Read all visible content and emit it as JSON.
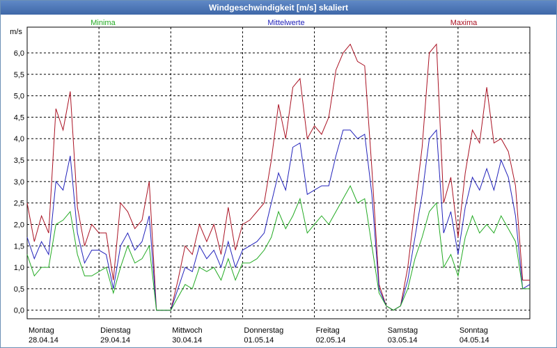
{
  "window": {
    "title": "Windgeschwindigkeit [m/s] skaliert"
  },
  "chart_data": {
    "type": "line",
    "title": "Windgeschwindigkeit [m/s] skaliert",
    "ylabel": "m/s",
    "ylim": [
      -0.2,
      6.6
    ],
    "yticks": [
      "0,0",
      "0,5",
      "1,0",
      "1,5",
      "2,0",
      "2,5",
      "3,0",
      "3,5",
      "4,0",
      "4,5",
      "5,0",
      "5,5",
      "6,0"
    ],
    "yticks_values": [
      0,
      0.5,
      1,
      1.5,
      2,
      2.5,
      3,
      3.5,
      4,
      4.5,
      5,
      5.5,
      6
    ],
    "xlim": [
      0,
      7
    ],
    "days": [
      {
        "day": "Montag",
        "date": "28.04.14"
      },
      {
        "day": "Dienstag",
        "date": "29.04.14"
      },
      {
        "day": "Mittwoch",
        "date": "30.04.14"
      },
      {
        "day": "Donnerstag",
        "date": "01.05.14"
      },
      {
        "day": "Freitag",
        "date": "02.05.14"
      },
      {
        "day": "Samstag",
        "date": "03.05.14"
      },
      {
        "day": "Sonntag",
        "date": "04.05.14"
      }
    ],
    "grid": true,
    "x": [
      0,
      0.1,
      0.2,
      0.3,
      0.4,
      0.5,
      0.6,
      0.7,
      0.8,
      0.9,
      1.0,
      1.1,
      1.2,
      1.3,
      1.4,
      1.5,
      1.6,
      1.7,
      1.8,
      1.9,
      2.0,
      2.1,
      2.2,
      2.3,
      2.4,
      2.5,
      2.6,
      2.7,
      2.8,
      2.9,
      3.0,
      3.1,
      3.2,
      3.3,
      3.4,
      3.5,
      3.6,
      3.7,
      3.8,
      3.9,
      4.0,
      4.1,
      4.2,
      4.3,
      4.4,
      4.5,
      4.6,
      4.7,
      4.8,
      4.9,
      5.0,
      5.1,
      5.2,
      5.3,
      5.4,
      5.5,
      5.6,
      5.7,
      5.8,
      5.9,
      6.0,
      6.1,
      6.2,
      6.3,
      6.4,
      6.5,
      6.6,
      6.7,
      6.8,
      6.9,
      7.0
    ],
    "series": [
      {
        "name": "Minima",
        "color": "#22aa22",
        "values": [
          1.3,
          0.8,
          1.0,
          1.0,
          2.0,
          2.1,
          2.3,
          1.3,
          0.8,
          0.8,
          0.9,
          1.0,
          0.4,
          1.0,
          1.5,
          1.1,
          1.2,
          1.5,
          0.0,
          0.0,
          0.0,
          0.3,
          0.6,
          0.5,
          1.0,
          0.9,
          1.0,
          0.7,
          1.2,
          0.7,
          1.1,
          1.1,
          1.2,
          1.4,
          1.7,
          2.3,
          1.9,
          2.2,
          2.6,
          1.8,
          2.0,
          2.2,
          2.0,
          2.3,
          2.6,
          2.9,
          2.5,
          2.6,
          1.5,
          0.4,
          0.1,
          0.0,
          0.1,
          0.5,
          1.2,
          1.7,
          2.3,
          2.5,
          1.0,
          1.3,
          0.8,
          1.7,
          2.2,
          1.8,
          2.0,
          1.8,
          2.2,
          1.9,
          1.6,
          0.5,
          0.5
        ]
      },
      {
        "name": "Mittelwerte",
        "color": "#2222bb",
        "values": [
          1.7,
          1.2,
          1.6,
          1.3,
          3.0,
          2.8,
          3.6,
          1.8,
          1.1,
          1.4,
          1.4,
          1.3,
          0.5,
          1.5,
          1.8,
          1.4,
          1.6,
          2.2,
          0.0,
          0.0,
          0.0,
          0.5,
          1.0,
          0.9,
          1.5,
          1.2,
          1.4,
          1.0,
          1.6,
          1.0,
          1.4,
          1.5,
          1.6,
          1.8,
          2.5,
          3.2,
          2.8,
          3.8,
          3.9,
          2.7,
          2.8,
          2.9,
          2.9,
          3.6,
          4.2,
          4.2,
          4.0,
          4.1,
          2.7,
          0.5,
          0.1,
          0.0,
          0.1,
          0.7,
          1.7,
          2.7,
          4.0,
          4.2,
          1.8,
          2.3,
          1.3,
          2.4,
          3.1,
          2.8,
          3.3,
          2.8,
          3.5,
          3.1,
          2.2,
          0.5,
          0.6
        ]
      },
      {
        "name": "Maxima",
        "color": "#aa1122",
        "values": [
          2.5,
          1.6,
          2.2,
          1.8,
          4.7,
          4.2,
          5.1,
          2.4,
          1.5,
          2.0,
          1.8,
          1.8,
          0.7,
          2.5,
          2.3,
          1.9,
          2.1,
          3.0,
          0.0,
          0.0,
          0.0,
          0.7,
          1.5,
          1.3,
          2.0,
          1.6,
          2.0,
          1.3,
          2.4,
          1.4,
          2.0,
          2.1,
          2.3,
          2.5,
          3.5,
          4.8,
          4.0,
          5.2,
          5.4,
          4.0,
          4.3,
          4.1,
          4.5,
          5.6,
          6.0,
          6.2,
          5.8,
          5.7,
          3.3,
          0.6,
          0.1,
          0.0,
          0.1,
          1.0,
          2.4,
          3.8,
          6.0,
          6.2,
          2.5,
          3.1,
          1.7,
          3.2,
          4.2,
          3.9,
          5.2,
          3.9,
          4.0,
          3.7,
          2.9,
          0.7,
          0.7
        ]
      }
    ]
  }
}
